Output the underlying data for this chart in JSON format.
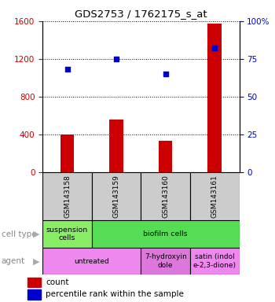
{
  "title": "GDS2753 / 1762175_s_at",
  "samples": [
    "GSM143158",
    "GSM143159",
    "GSM143160",
    "GSM143161"
  ],
  "counts": [
    400,
    560,
    330,
    1570
  ],
  "percentiles": [
    68,
    75,
    65,
    82
  ],
  "ylim_left": [
    0,
    1600
  ],
  "ylim_right": [
    0,
    100
  ],
  "yticks_left": [
    0,
    400,
    800,
    1200,
    1600
  ],
  "yticks_right": [
    0,
    25,
    50,
    75,
    100
  ],
  "bar_color": "#cc0000",
  "dot_color": "#0000cc",
  "cell_type_row": [
    {
      "label": "suspension\ncells",
      "span": 1,
      "color": "#88ee66"
    },
    {
      "label": "biofilm cells",
      "span": 3,
      "color": "#55dd55"
    }
  ],
  "agent_row": [
    {
      "label": "untreated",
      "span": 2,
      "color": "#ee88ee"
    },
    {
      "label": "7-hydroxyin\ndole",
      "span": 1,
      "color": "#dd77dd"
    },
    {
      "label": "satin (indol\ne-2,3-dione)",
      "span": 1,
      "color": "#ee88ee"
    }
  ],
  "legend_count_color": "#cc0000",
  "legend_pct_color": "#0000cc",
  "tick_label_color_left": "#cc0000",
  "tick_label_color_right": "#0000cc",
  "sample_box_color": "#cccccc"
}
